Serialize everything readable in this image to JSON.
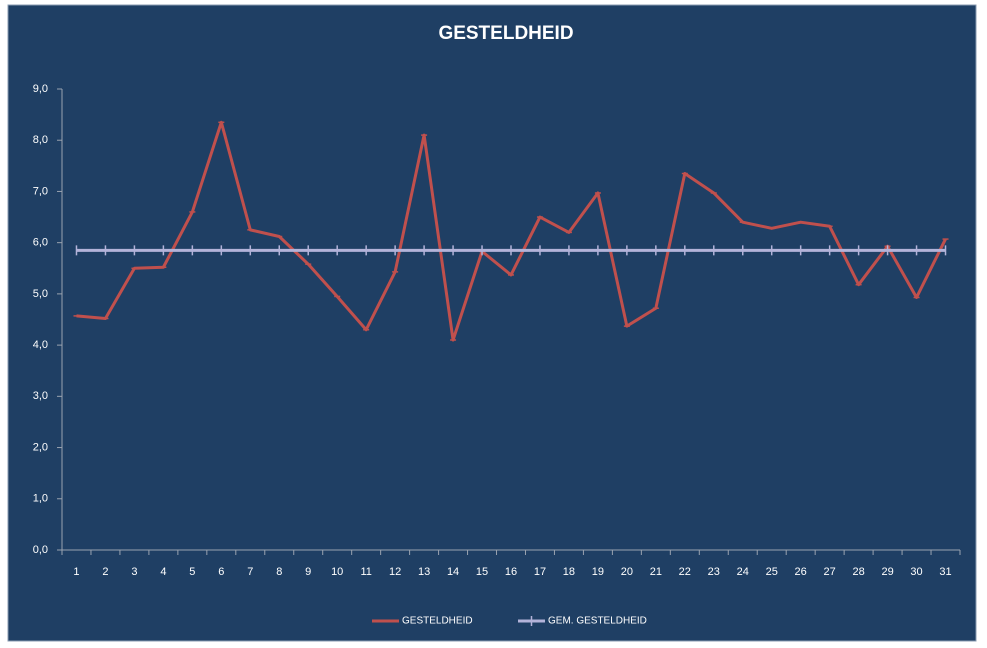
{
  "chart_data": {
    "type": "line",
    "title": "GESTELDHEID",
    "categories": [
      1,
      2,
      3,
      4,
      5,
      6,
      7,
      8,
      9,
      10,
      11,
      12,
      13,
      14,
      15,
      16,
      17,
      18,
      19,
      20,
      21,
      22,
      23,
      24,
      25,
      26,
      27,
      28,
      29,
      30,
      31
    ],
    "series": [
      {
        "name": "GESTELDHEID",
        "color": "#c0504d",
        "values": [
          4.57,
          4.52,
          5.5,
          5.52,
          6.6,
          8.35,
          6.25,
          6.12,
          5.58,
          4.95,
          4.3,
          5.43,
          8.1,
          4.1,
          5.83,
          5.37,
          6.5,
          6.2,
          6.97,
          4.37,
          4.72,
          7.35,
          6.97,
          6.4,
          6.28,
          6.4,
          6.32,
          5.18,
          5.93,
          4.93,
          6.07
        ]
      },
      {
        "name": "GEM. GESTELDHEID",
        "color": "#b3b3d9",
        "values": [
          5.85,
          5.85,
          5.85,
          5.85,
          5.85,
          5.85,
          5.85,
          5.85,
          5.85,
          5.85,
          5.85,
          5.85,
          5.85,
          5.85,
          5.85,
          5.85,
          5.85,
          5.85,
          5.85,
          5.85,
          5.85,
          5.85,
          5.85,
          5.85,
          5.85,
          5.85,
          5.85,
          5.85,
          5.85,
          5.85,
          5.85
        ]
      }
    ],
    "ylim": [
      0,
      9
    ],
    "yticks": [
      {
        "value": 0,
        "label": "0,0"
      },
      {
        "value": 1,
        "label": "1,0"
      },
      {
        "value": 2,
        "label": "2,0"
      },
      {
        "value": 3,
        "label": "3,0"
      },
      {
        "value": 4,
        "label": "4,0"
      },
      {
        "value": 5,
        "label": "5,0"
      },
      {
        "value": 6,
        "label": "6,0"
      },
      {
        "value": 7,
        "label": "7,0"
      },
      {
        "value": 8,
        "label": "8,0"
      },
      {
        "value": 9,
        "label": "9,0"
      }
    ],
    "grid": false,
    "legend": "bottom"
  }
}
